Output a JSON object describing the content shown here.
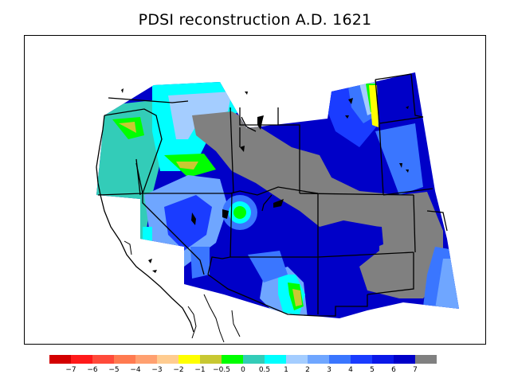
{
  "title": "PDSI reconstruction A.D. 1621",
  "legend": {
    "swatches": [
      {
        "color": "#d30000"
      },
      {
        "color": "#ff1a1a"
      },
      {
        "color": "#ff4a3a"
      },
      {
        "color": "#ff7a50"
      },
      {
        "color": "#ffa070"
      },
      {
        "color": "#ffcc90"
      },
      {
        "color": "#ffff00"
      },
      {
        "color": "#c8c832"
      },
      {
        "color": "#00ff00"
      },
      {
        "color": "#33ccb8"
      },
      {
        "color": "#00ffff"
      },
      {
        "color": "#a4cdff"
      },
      {
        "color": "#6fa6ff"
      },
      {
        "color": "#3a76ff"
      },
      {
        "color": "#1a3cff"
      },
      {
        "color": "#0a18e8"
      },
      {
        "color": "#0000c8"
      },
      {
        "color": "#808080"
      }
    ],
    "labels": [
      "−7",
      "−6",
      "−5",
      "−4",
      "−3",
      "−2",
      "−1",
      "−0.5",
      "0",
      "0.5",
      "1",
      "2",
      "3",
      "4",
      "5",
      "6",
      "7"
    ]
  },
  "map": {
    "variable": "PDSI",
    "year": "A.D. 1621",
    "colors": {
      "wet_extreme": "#808080",
      "very_wet": "#0000c8",
      "wet": "#1a3cff",
      "moderately_wet": "#3a76ff",
      "slightly_wet": "#6fa6ff",
      "near_normal": "#a4cdff",
      "cyan": "#00ffff",
      "teal": "#33ccb8",
      "green": "#00ff00",
      "olive": "#c8c832",
      "yellow": "#ffff00"
    }
  }
}
